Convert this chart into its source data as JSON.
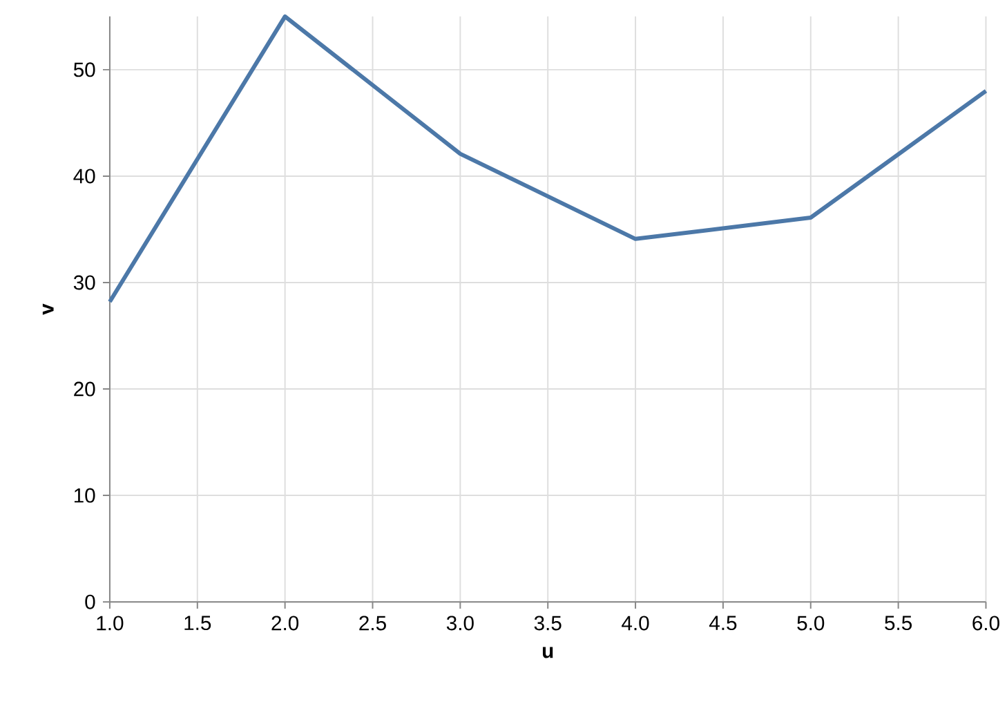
{
  "chart_data": {
    "type": "line",
    "xlabel": "u",
    "ylabel": "v",
    "x": [
      1,
      2,
      3,
      4,
      5,
      6
    ],
    "series": [
      {
        "color": "#4c78a8",
        "values": [
          28.2,
          55,
          42.1,
          34.1,
          36.1,
          48.0
        ]
      }
    ],
    "xlim": [
      1,
      6
    ],
    "ylim": [
      0,
      55
    ],
    "xticks": [
      {
        "value": 1,
        "label": "1.0"
      },
      {
        "value": 1.5,
        "label": "1.5"
      },
      {
        "value": 2,
        "label": "2.0"
      },
      {
        "value": 2.5,
        "label": "2.5"
      },
      {
        "value": 3,
        "label": "3.0"
      },
      {
        "value": 3.5,
        "label": "3.5"
      },
      {
        "value": 4,
        "label": "4.0"
      },
      {
        "value": 4.5,
        "label": "4.5"
      },
      {
        "value": 5,
        "label": "5.0"
      },
      {
        "value": 5.5,
        "label": "5.5"
      },
      {
        "value": 6,
        "label": "6.0"
      }
    ],
    "yticks": [
      0,
      10,
      20,
      30,
      40,
      50
    ],
    "grid": true,
    "marker": "none",
    "line_style": "solid"
  }
}
